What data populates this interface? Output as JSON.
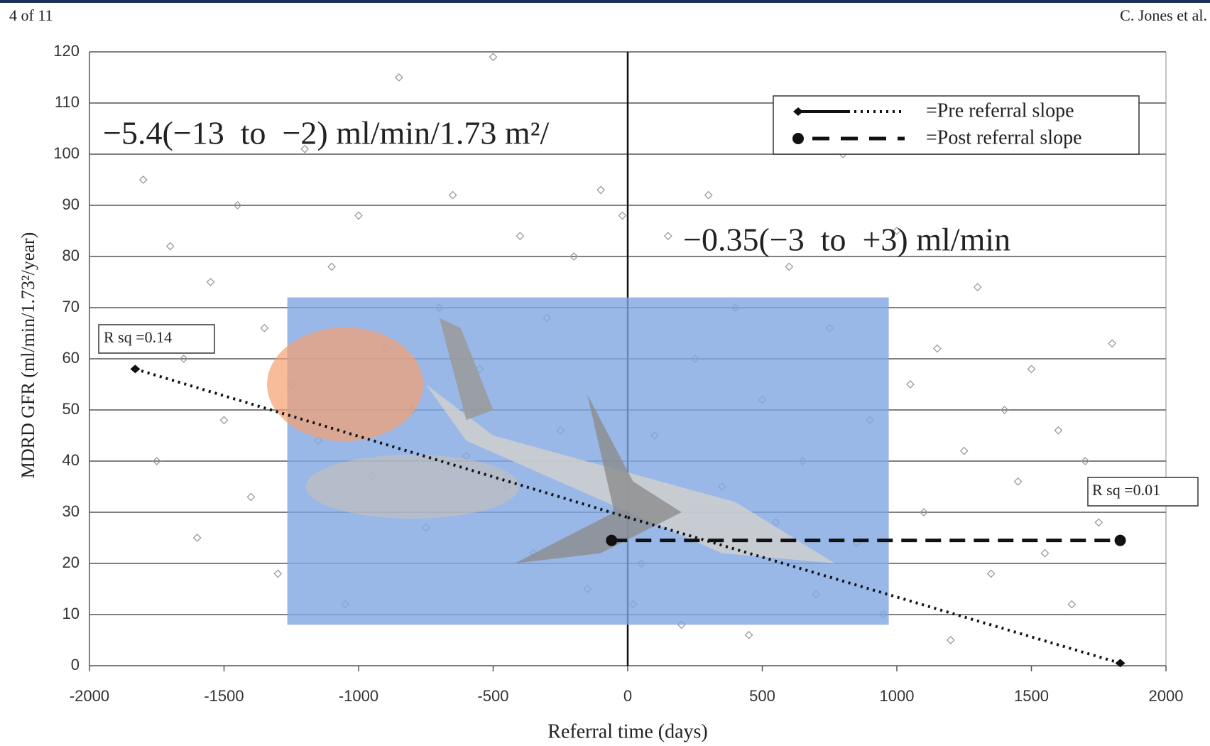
{
  "header": {
    "page": "4 of 11",
    "author": "C. Jones et al."
  },
  "chart_data": {
    "type": "scatter",
    "xlabel": "Referral time (days)",
    "ylabel": "MDRD GFR (ml/min/1.73²/year)",
    "xlim": [
      -2000,
      2000
    ],
    "ylim": [
      0,
      120
    ],
    "xticks": [
      -2000,
      -1500,
      -1000,
      -500,
      0,
      500,
      1000,
      1500,
      2000
    ],
    "yticks": [
      0,
      10,
      20,
      30,
      40,
      50,
      60,
      70,
      80,
      90,
      100,
      110,
      120
    ],
    "grid": true,
    "legend": "upper right",
    "points": {
      "color": "#9a9a9a",
      "x": [
        -1800,
        -1750,
        -1700,
        -1650,
        -1600,
        -1550,
        -1500,
        -1450,
        -1400,
        -1350,
        -1300,
        -1250,
        -1200,
        -1150,
        -1100,
        -1050,
        -1000,
        -950,
        -900,
        -850,
        -800,
        -750,
        -700,
        -650,
        -600,
        -550,
        -500,
        -450,
        -400,
        -350,
        -300,
        -250,
        -200,
        -150,
        -100,
        -50,
        -20,
        20,
        50,
        100,
        150,
        200,
        250,
        300,
        350,
        400,
        450,
        500,
        550,
        600,
        650,
        700,
        750,
        800,
        850,
        900,
        950,
        1000,
        1050,
        1100,
        1150,
        1200,
        1250,
        1300,
        1350,
        1400,
        1450,
        1500,
        1550,
        1600,
        1650,
        1700,
        1750,
        1800
      ],
      "values": [
        95,
        40,
        82,
        60,
        25,
        75,
        48,
        90,
        33,
        66,
        18,
        55,
        101,
        44,
        78,
        12,
        88,
        37,
        62,
        115,
        50,
        27,
        70,
        92,
        41,
        58,
        119,
        35,
        84,
        22,
        68,
        46,
        80,
        15,
        93,
        30,
        88,
        12,
        20,
        45,
        84,
        8,
        60,
        92,
        35,
        70,
        6,
        52,
        28,
        78,
        40,
        14,
        66,
        100,
        24,
        48,
        10,
        85,
        55,
        30,
        62,
        5,
        42,
        74,
        18,
        50,
        36,
        58,
        22,
        46,
        12,
        40,
        28,
        63
      ]
    },
    "series": [
      {
        "name": "=Pre referral slope",
        "color": "#111111",
        "x": [
          -1830,
          0,
          1830
        ],
        "values": [
          58,
          29,
          0.5
        ]
      },
      {
        "name": "=Post referral slope",
        "color": "#111111",
        "x": [
          -60,
          1830
        ],
        "values": [
          24.5,
          24.5
        ]
      }
    ],
    "annotations": [
      {
        "text": "−5.4(−13  to  −2) ml/min/1.73 m²/"
      },
      {
        "text": "−0.35(−3  to  +3) ml/min"
      },
      {
        "text": "R sq =0.14"
      },
      {
        "text": "R sq =0.01"
      }
    ]
  }
}
